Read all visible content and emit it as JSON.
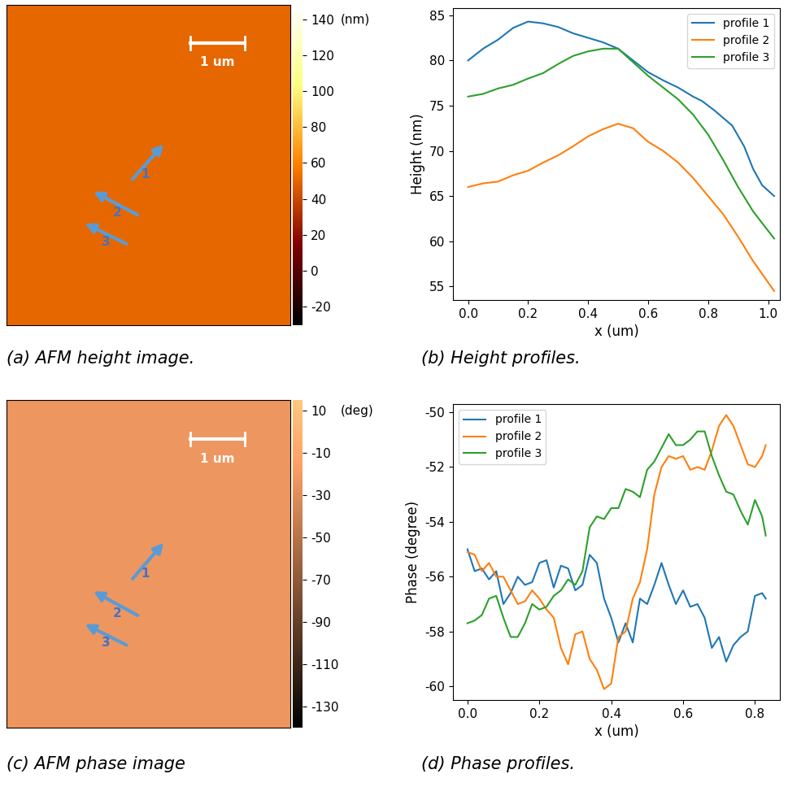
{
  "chart_data": [
    {
      "type": "image",
      "caption": "(a) AFM height image.",
      "scale_bar": "1 um",
      "arrows": [
        "1",
        "2",
        "3"
      ],
      "colorbar_label": "(nm)",
      "colorbar_lim": [
        -30,
        148
      ],
      "colorbar_ticks": [
        -20,
        0,
        20,
        40,
        60,
        80,
        100,
        120,
        140
      ]
    },
    {
      "type": "line",
      "caption": "(b) Height profiles.",
      "x_label": "x (um)",
      "y_label": "Height (nm)",
      "xlim": [
        -0.05,
        1.04
      ],
      "ylim": [
        53.5,
        85.8
      ],
      "xticks": [
        {
          "value": 0,
          "label": "0.0"
        },
        {
          "value": 0.2,
          "label": "0.2"
        },
        {
          "value": 0.4,
          "label": "0.4"
        },
        {
          "value": 0.6,
          "label": "0.6"
        },
        {
          "value": 0.8,
          "label": "0.8"
        },
        {
          "value": 1,
          "label": "1.0"
        }
      ],
      "yticks": [
        55,
        60,
        65,
        70,
        75,
        80,
        85
      ],
      "legend": "upper right",
      "grid": false,
      "series": [
        {
          "name": "profile 1",
          "color": "#1f77b4",
          "x": [
            0,
            0.05,
            0.1,
            0.15,
            0.2,
            0.25,
            0.3,
            0.35,
            0.4,
            0.45,
            0.5,
            0.55,
            0.6,
            0.65,
            0.7,
            0.75,
            0.78,
            0.82,
            0.88,
            0.92,
            0.95,
            0.98,
            1.02
          ],
          "values": [
            80,
            81.3,
            82.3,
            83.6,
            84.3,
            84.1,
            83.7,
            83,
            82.5,
            82,
            81.3,
            80,
            78.7,
            77.8,
            77,
            76,
            75.5,
            74.5,
            72.8,
            70.5,
            68,
            66.2,
            65
          ]
        },
        {
          "name": "profile 2",
          "color": "#ff7f0e",
          "x": [
            0,
            0.05,
            0.1,
            0.15,
            0.2,
            0.25,
            0.3,
            0.35,
            0.4,
            0.45,
            0.5,
            0.55,
            0.6,
            0.65,
            0.7,
            0.75,
            0.8,
            0.85,
            0.9,
            0.95,
            1.02
          ],
          "values": [
            66,
            66.4,
            66.6,
            67.3,
            67.8,
            68.7,
            69.5,
            70.5,
            71.6,
            72.4,
            73,
            72.5,
            71,
            70,
            68.7,
            67,
            65,
            63,
            60.5,
            57.8,
            54.5
          ]
        },
        {
          "name": "profile 3",
          "color": "#2ca02c",
          "x": [
            0,
            0.05,
            0.1,
            0.15,
            0.2,
            0.25,
            0.3,
            0.35,
            0.4,
            0.45,
            0.5,
            0.55,
            0.6,
            0.65,
            0.7,
            0.75,
            0.8,
            0.85,
            0.9,
            0.95,
            1.02
          ],
          "values": [
            76,
            76.3,
            76.9,
            77.3,
            78,
            78.6,
            79.6,
            80.5,
            81,
            81.3,
            81.3,
            79.8,
            78.3,
            77,
            75.7,
            74,
            71.8,
            69,
            66,
            63.3,
            60.3
          ]
        }
      ]
    },
    {
      "type": "image",
      "caption": "(c) AFM phase image",
      "scale_bar": "1 um",
      "arrows": [
        "1",
        "2",
        "3"
      ],
      "colorbar_label": "(deg)",
      "colorbar_lim": [
        -140,
        15
      ],
      "colorbar_ticks": [
        -130,
        -110,
        -90,
        -70,
        -50,
        -30,
        -10,
        10
      ]
    },
    {
      "type": "line",
      "caption": "(d) Phase profiles.",
      "x_label": "x (um)",
      "y_label": "Phase (degree)",
      "xlim": [
        -0.04,
        0.87
      ],
      "ylim": [
        -60.5,
        -49.7
      ],
      "xticks": [
        {
          "value": 0,
          "label": "0.0"
        },
        {
          "value": 0.2,
          "label": "0.2"
        },
        {
          "value": 0.4,
          "label": "0.4"
        },
        {
          "value": 0.6,
          "label": "0.6"
        },
        {
          "value": 0.8,
          "label": "0.8"
        }
      ],
      "yticks": [
        -60,
        -58,
        -56,
        -54,
        -52,
        -50
      ],
      "legend": "upper left",
      "grid": false,
      "series": [
        {
          "name": "profile 1",
          "color": "#1f77b4",
          "x": [
            0,
            0.02,
            0.04,
            0.06,
            0.08,
            0.1,
            0.12,
            0.14,
            0.16,
            0.18,
            0.2,
            0.22,
            0.24,
            0.26,
            0.28,
            0.3,
            0.32,
            0.34,
            0.36,
            0.38,
            0.4,
            0.42,
            0.44,
            0.46,
            0.48,
            0.5,
            0.52,
            0.54,
            0.56,
            0.58,
            0.6,
            0.62,
            0.64,
            0.66,
            0.68,
            0.7,
            0.72,
            0.74,
            0.76,
            0.78,
            0.8,
            0.82,
            0.83
          ],
          "values": [
            -55,
            -55.8,
            -55.7,
            -56.1,
            -55.8,
            -57,
            -56.6,
            -56,
            -56.3,
            -56.2,
            -55.5,
            -55.4,
            -56.4,
            -55.6,
            -55.7,
            -56.5,
            -56.3,
            -55.2,
            -55.5,
            -56.8,
            -57.5,
            -58.4,
            -57.7,
            -58.4,
            -56.8,
            -57,
            -56.3,
            -55.5,
            -56.3,
            -57,
            -56.5,
            -57.1,
            -57,
            -57.5,
            -58.6,
            -58.2,
            -59.1,
            -58.5,
            -58.2,
            -58,
            -56.7,
            -56.6,
            -56.8
          ]
        },
        {
          "name": "profile 2",
          "color": "#ff7f0e",
          "x": [
            0,
            0.02,
            0.04,
            0.06,
            0.08,
            0.1,
            0.12,
            0.14,
            0.16,
            0.18,
            0.2,
            0.22,
            0.24,
            0.26,
            0.28,
            0.3,
            0.32,
            0.34,
            0.36,
            0.38,
            0.4,
            0.42,
            0.44,
            0.46,
            0.48,
            0.5,
            0.52,
            0.54,
            0.56,
            0.58,
            0.6,
            0.62,
            0.64,
            0.66,
            0.68,
            0.7,
            0.72,
            0.74,
            0.76,
            0.78,
            0.8,
            0.82,
            0.83
          ],
          "values": [
            -55.1,
            -55.2,
            -55.8,
            -55.5,
            -56,
            -56,
            -56.5,
            -57,
            -56.9,
            -56.5,
            -56.8,
            -57.2,
            -57.5,
            -58.6,
            -59.2,
            -58.1,
            -58,
            -59,
            -59.4,
            -60.1,
            -59.9,
            -58.2,
            -58,
            -56.8,
            -56.2,
            -55,
            -53,
            -52,
            -51.6,
            -51.7,
            -51.6,
            -52.1,
            -52,
            -52.1,
            -51.4,
            -50.5,
            -50.1,
            -50.5,
            -51.2,
            -51.9,
            -52,
            -51.6,
            -51.2
          ]
        },
        {
          "name": "profile 3",
          "color": "#2ca02c",
          "x": [
            0,
            0.02,
            0.04,
            0.06,
            0.08,
            0.1,
            0.12,
            0.14,
            0.16,
            0.18,
            0.2,
            0.22,
            0.24,
            0.26,
            0.28,
            0.3,
            0.32,
            0.34,
            0.36,
            0.38,
            0.4,
            0.42,
            0.44,
            0.46,
            0.48,
            0.5,
            0.52,
            0.54,
            0.56,
            0.58,
            0.6,
            0.62,
            0.64,
            0.66,
            0.68,
            0.7,
            0.72,
            0.74,
            0.76,
            0.78,
            0.8,
            0.82,
            0.83
          ],
          "values": [
            -57.7,
            -57.6,
            -57.4,
            -56.8,
            -56.7,
            -57.5,
            -58.2,
            -58.2,
            -57.7,
            -57,
            -57.2,
            -57.1,
            -56.7,
            -56.5,
            -56.1,
            -56.3,
            -55.8,
            -54.2,
            -53.8,
            -53.9,
            -53.5,
            -53.5,
            -52.8,
            -52.9,
            -53.1,
            -52.1,
            -51.8,
            -51.3,
            -50.8,
            -51.2,
            -51.2,
            -51,
            -50.7,
            -50.7,
            -51.6,
            -52.3,
            -52.9,
            -53,
            -53.6,
            -54.1,
            -53.2,
            -53.8,
            -54.5
          ]
        }
      ]
    }
  ]
}
